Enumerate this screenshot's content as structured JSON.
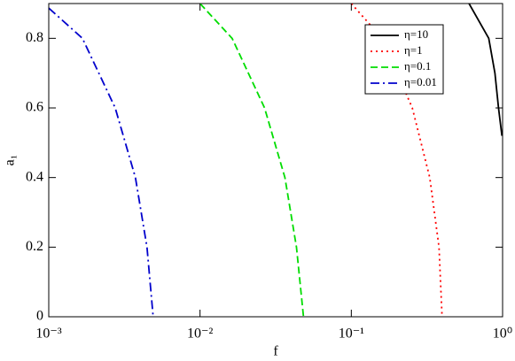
{
  "chart_data": {
    "type": "line",
    "x_label": "f",
    "y_label": "a₁",
    "xscale": "log",
    "xlim": [
      0.001,
      1
    ],
    "xticks": [
      {
        "value": 0.001,
        "label": "10⁻³"
      },
      {
        "value": 0.01,
        "label": "10⁻²"
      },
      {
        "value": 0.1,
        "label": "10⁻¹"
      },
      {
        "value": 1,
        "label": "10⁰"
      }
    ],
    "ylim": [
      0,
      0.9
    ],
    "yticks": [
      0,
      0.2,
      0.4,
      0.6,
      0.8
    ],
    "legend": "upper right",
    "series": [
      {
        "name": "η=10",
        "color": "#000000",
        "style": "solid",
        "x": [
          0.6,
          0.81,
          0.89,
          0.94,
          0.99
        ],
        "values": [
          0.9,
          0.8,
          0.7,
          0.6,
          0.52
        ]
      },
      {
        "name": "η=1",
        "color": "#ff0000",
        "style": "dotted",
        "x": [
          0.1,
          0.16,
          0.253,
          0.33,
          0.38,
          0.398
        ],
        "values": [
          0.9,
          0.8,
          0.6,
          0.4,
          0.2,
          0
        ]
      },
      {
        "name": "η=0.1",
        "color": "#00dd00",
        "style": "dashed",
        "x": [
          0.01,
          0.0163,
          0.0267,
          0.0364,
          0.0434,
          0.0483
        ],
        "values": [
          0.9,
          0.8,
          0.6,
          0.4,
          0.2,
          0
        ]
      },
      {
        "name": "η=0.01",
        "color": "#0000cc",
        "style": "dashdot",
        "x": [
          0.001,
          0.00167,
          0.00275,
          0.00374,
          0.00446,
          0.0049
        ],
        "values": [
          0.887,
          0.8,
          0.6,
          0.4,
          0.2,
          0
        ]
      }
    ]
  }
}
